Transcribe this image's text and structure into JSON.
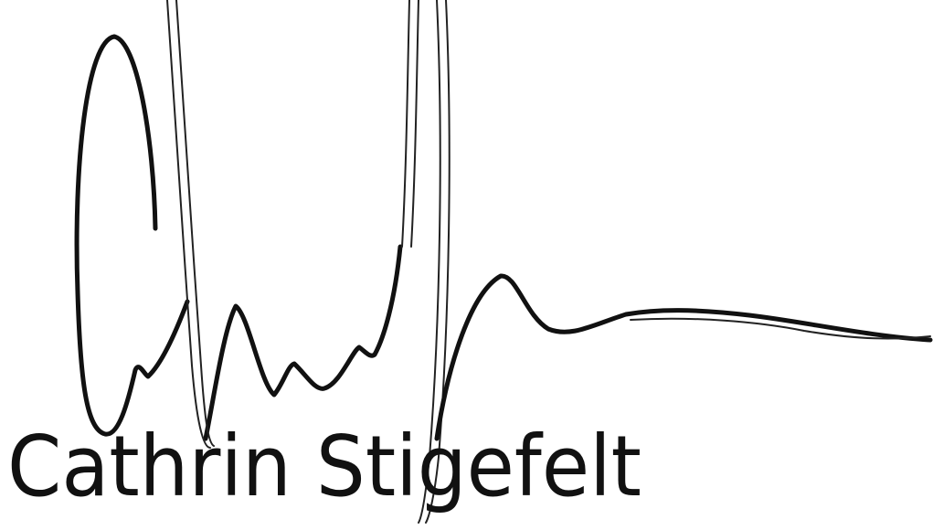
{
  "signature": {
    "name": "Cathrin Stigefelt"
  }
}
